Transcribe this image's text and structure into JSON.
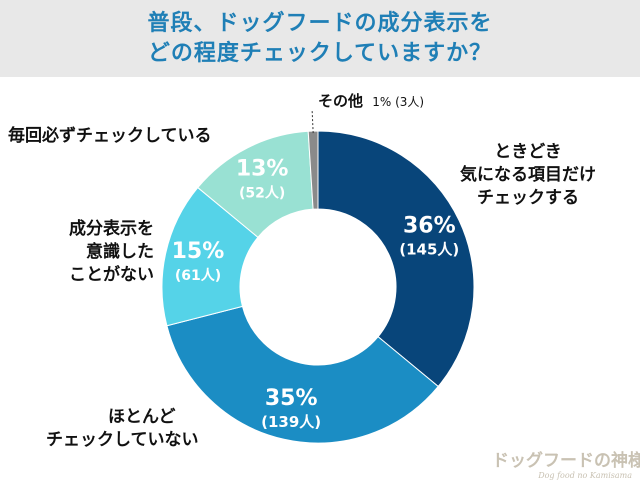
{
  "title": {
    "line1": "普段、ドッグフードの成分表示を",
    "line2": "どの程度チェックしていますか？"
  },
  "chart_data": {
    "type": "pie",
    "variant": "donut",
    "title": "普段、ドッグフードの成分表示をどの程度チェックしていますか？",
    "slices": [
      {
        "label": "ときどき気になる項目だけチェックする",
        "percent": 36,
        "percent_label": "36%",
        "count_label": "(145人)",
        "count": 145,
        "color": "#08457a"
      },
      {
        "label": "ほとんどチェックしていない",
        "percent": 35,
        "percent_label": "35%",
        "count_label": "(139人)",
        "count": 139,
        "color": "#1b8dc4"
      },
      {
        "label": "成分表示を意識したことがない",
        "percent": 15,
        "percent_label": "15%",
        "count_label": "(61人)",
        "count": 61,
        "color": "#55d3e8"
      },
      {
        "label": "毎回必ずチェックしている",
        "percent": 13,
        "percent_label": "13%",
        "count_label": "(52人)",
        "count": 52,
        "color": "#99e1d3"
      },
      {
        "label": "その他",
        "percent": 1,
        "percent_label": "1%",
        "count_label": "(3人)",
        "count": 3,
        "color": "#8a8a8a"
      }
    ]
  },
  "labels": {
    "sometimes": [
      "ときどき",
      "気になる項目だけ",
      "チェックする"
    ],
    "rarely": [
      "ほとんど",
      "チェックしていない"
    ],
    "never": [
      "成分表示を",
      "意識した",
      "ことがない"
    ],
    "always": "毎回必ずチェックしている",
    "other": "その他",
    "other_value": "1% (3人)"
  },
  "watermark": {
    "main": "ドッグフードの神様",
    "sub": "Dog food no Kamisama"
  }
}
